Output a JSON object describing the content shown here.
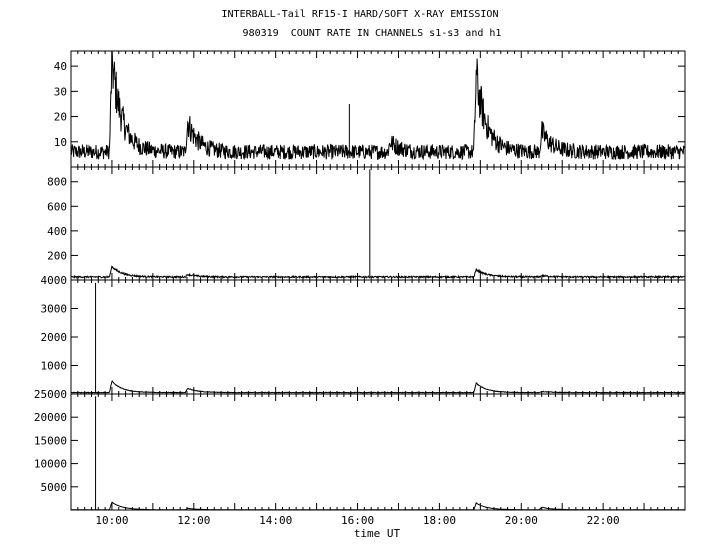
{
  "figure": {
    "title_line1": "INTERBALL-Tail RF15-I HARD/SOFT X-RAY EMISSION",
    "title_line2": "980319  COUNT RATE IN CHANNELS s1-s3 and h1",
    "xlabel": "time UT"
  },
  "chart_data": [
    {
      "type": "line",
      "panel": 1,
      "xlim_hours": [
        9.0,
        24.0
      ],
      "ylim": [
        0,
        46
      ],
      "y_ticks": [
        10,
        20,
        30,
        40
      ],
      "x_ticks": [
        "10:00",
        "12:00",
        "14:00",
        "16:00",
        "18:00",
        "20:00",
        "22:00"
      ],
      "baseline": 6,
      "noise": 3,
      "events": [
        {
          "t": 10.0,
          "peak": 42
        },
        {
          "t": 11.85,
          "peak": 18
        },
        {
          "t": 15.8,
          "peak": 25,
          "spike": true
        },
        {
          "t": 16.8,
          "peak": 10
        },
        {
          "t": 18.9,
          "peak": 36
        },
        {
          "t": 20.5,
          "peak": 14
        }
      ]
    },
    {
      "type": "line",
      "panel": 2,
      "xlim_hours": [
        9.0,
        24.0
      ],
      "ylim": [
        0,
        920
      ],
      "y_ticks": [
        200,
        400,
        600,
        800
      ],
      "x_ticks": [
        "10:00",
        "12:00",
        "14:00",
        "16:00",
        "18:00",
        "20:00",
        "22:00"
      ],
      "baseline": 25,
      "noise": 6,
      "events": [
        {
          "t": 10.0,
          "peak": 110
        },
        {
          "t": 11.85,
          "peak": 45
        },
        {
          "t": 16.3,
          "peak": 900,
          "spike": true
        },
        {
          "t": 18.9,
          "peak": 85
        },
        {
          "t": 20.5,
          "peak": 35
        }
      ]
    },
    {
      "type": "line",
      "panel": 3,
      "xlim_hours": [
        9.0,
        24.0
      ],
      "ylim": [
        0,
        4000
      ],
      "y_ticks": [
        1000,
        2000,
        3000,
        4000
      ],
      "x_ticks": [
        "10:00",
        "12:00",
        "14:00",
        "16:00",
        "18:00",
        "20:00",
        "22:00"
      ],
      "baseline": 50,
      "noise": 10,
      "events": [
        {
          "t": 9.6,
          "peak": 3900,
          "spike": true
        },
        {
          "t": 10.0,
          "peak": 450
        },
        {
          "t": 11.85,
          "peak": 200
        },
        {
          "t": 18.9,
          "peak": 380
        },
        {
          "t": 20.5,
          "peak": 90
        }
      ]
    },
    {
      "type": "line",
      "panel": 4,
      "xlim_hours": [
        9.0,
        24.0
      ],
      "ylim": [
        0,
        25000
      ],
      "y_ticks": [
        5000,
        10000,
        15000,
        20000,
        25000
      ],
      "x_ticks": [
        "10:00",
        "12:00",
        "14:00",
        "16:00",
        "18:00",
        "20:00",
        "22:00"
      ],
      "baseline": 50,
      "noise": 20,
      "events": [
        {
          "t": 9.6,
          "peak": 24500,
          "spike": true
        },
        {
          "t": 10.0,
          "peak": 1700
        },
        {
          "t": 11.85,
          "peak": 350
        },
        {
          "t": 18.9,
          "peak": 1500
        },
        {
          "t": 20.5,
          "peak": 600
        }
      ]
    }
  ]
}
